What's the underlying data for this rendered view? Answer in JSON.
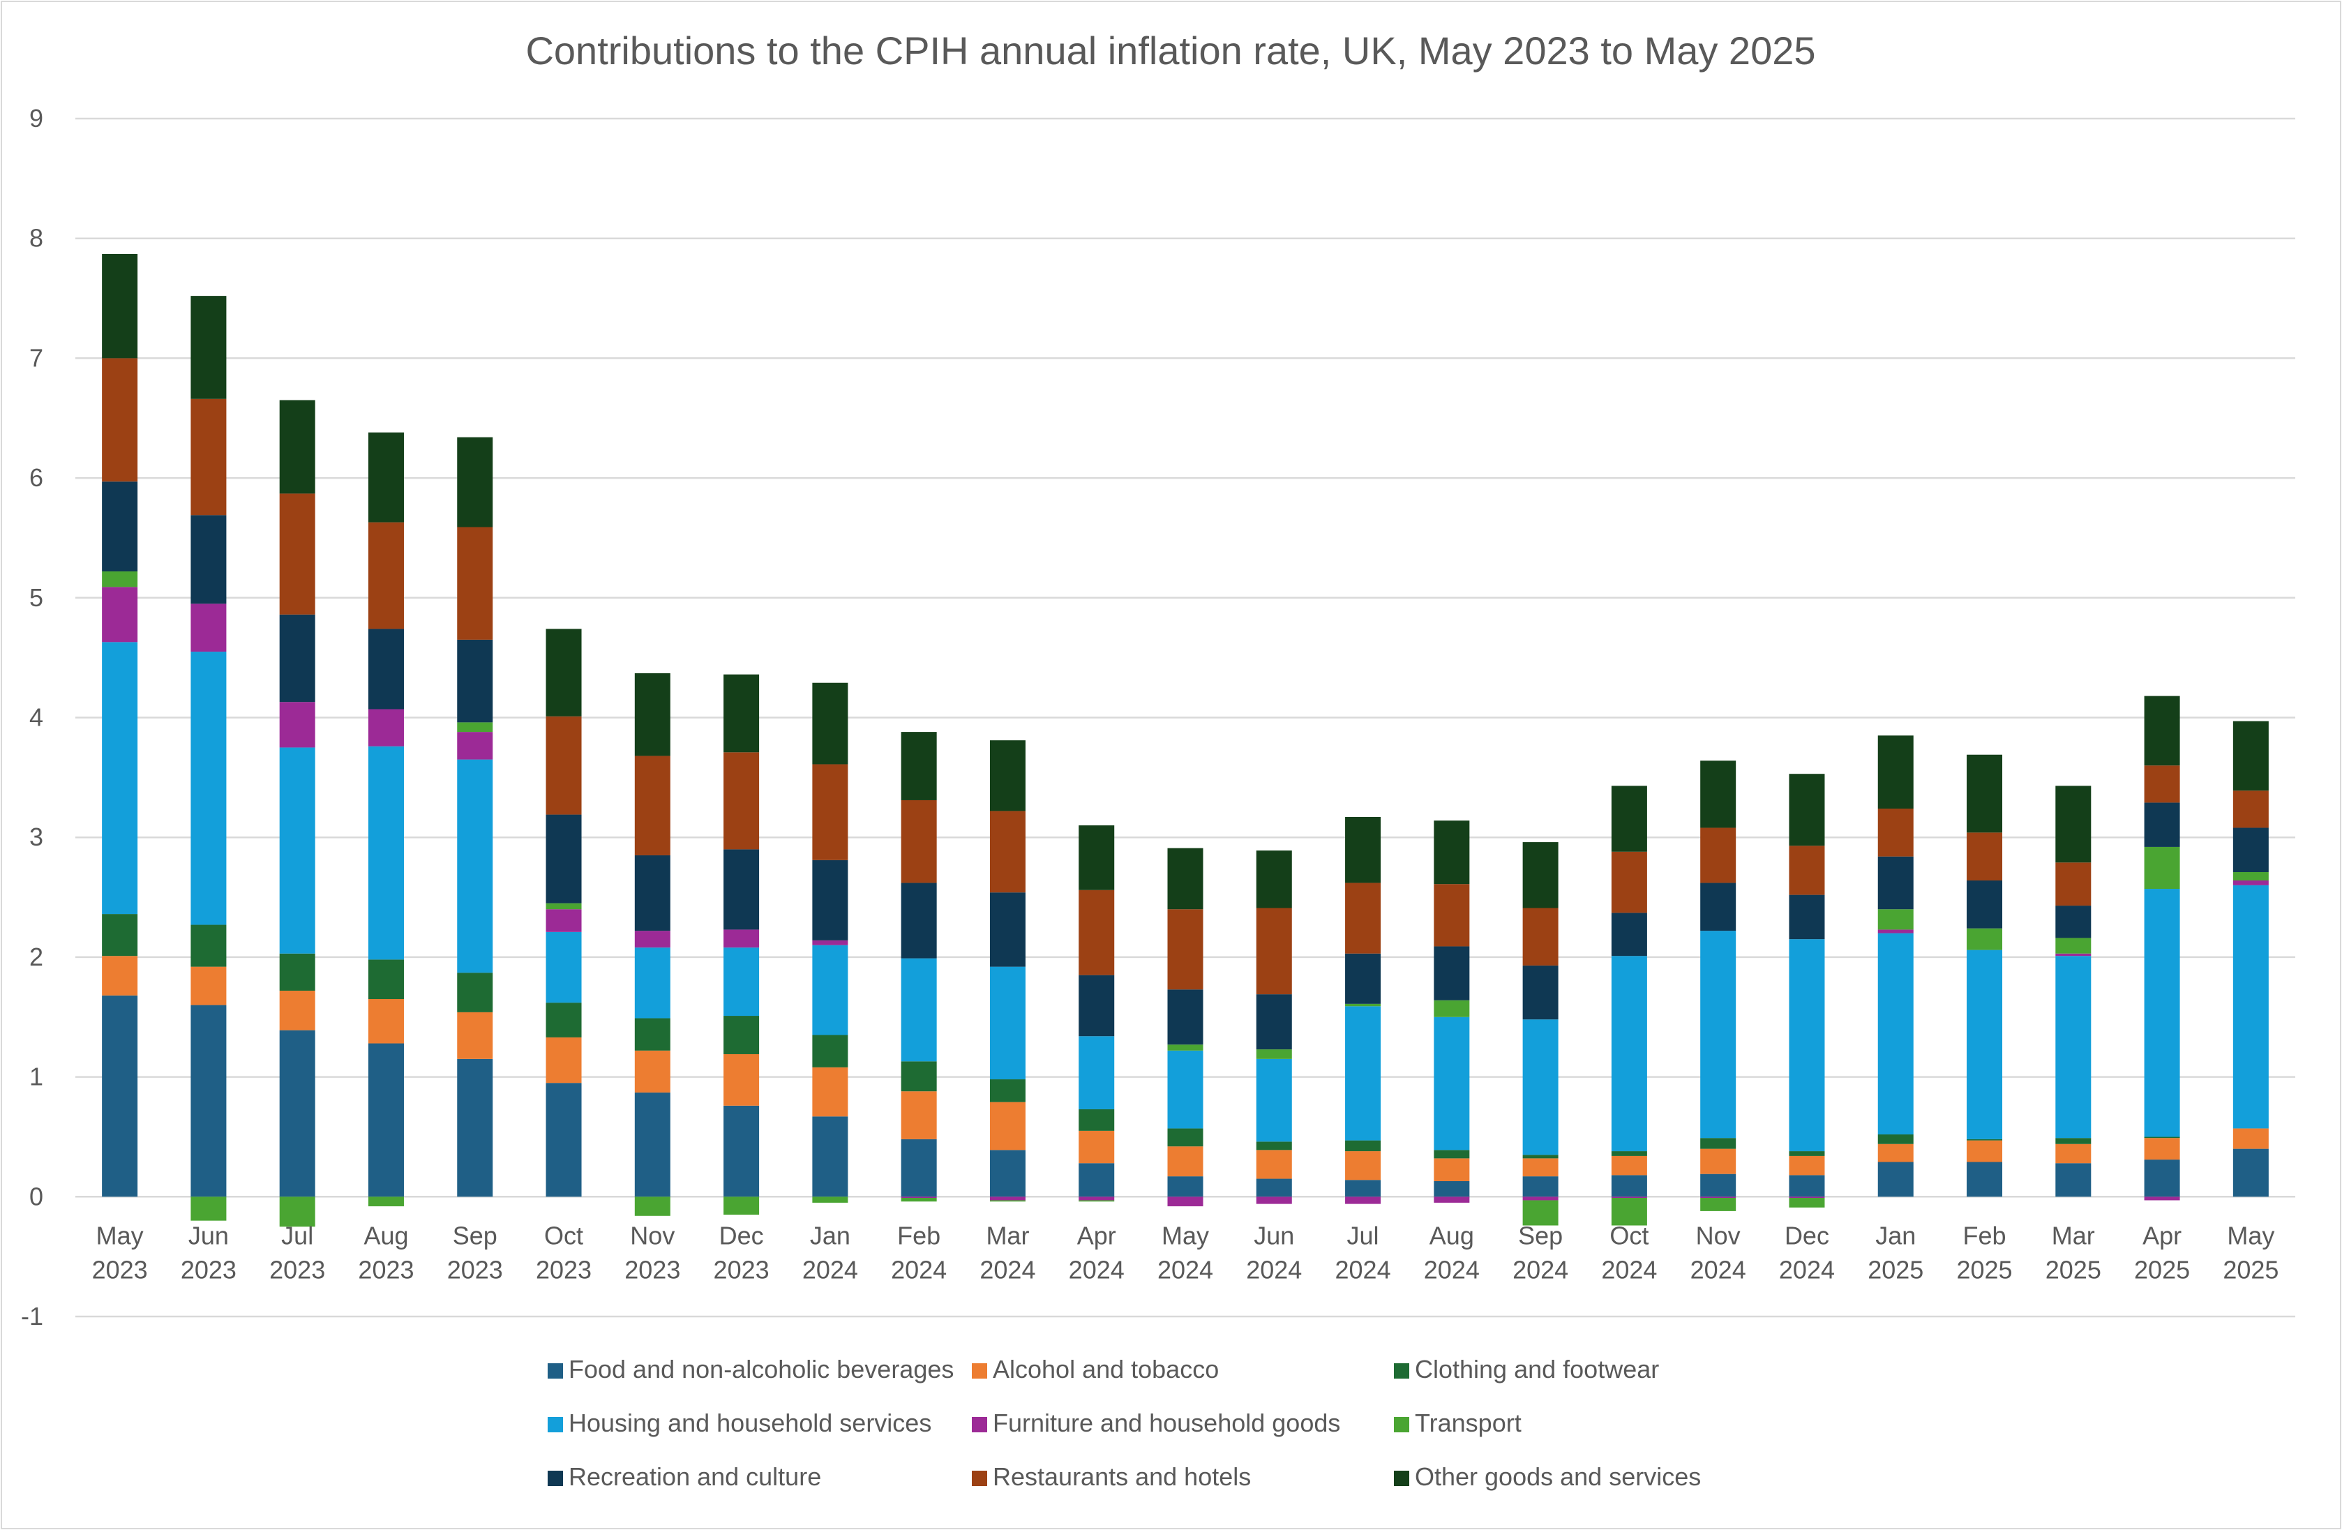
{
  "chart_data": {
    "type": "bar",
    "stacked": true,
    "title": "Contributions to the CPIH annual inflation rate, UK, May 2023 to May 2025",
    "xlabel": "",
    "ylabel": "",
    "ylim": [
      -1,
      9
    ],
    "yticks": [
      "-1",
      "0",
      "1",
      "2",
      "3",
      "4",
      "5",
      "6",
      "7",
      "8",
      "9"
    ],
    "grid": true,
    "legend_position": "bottom",
    "categories": [
      [
        "May",
        "2023"
      ],
      [
        "Jun",
        "2023"
      ],
      [
        "Jul",
        "2023"
      ],
      [
        "Aug",
        "2023"
      ],
      [
        "Sep",
        "2023"
      ],
      [
        "Oct",
        "2023"
      ],
      [
        "Nov",
        "2023"
      ],
      [
        "Dec",
        "2023"
      ],
      [
        "Jan",
        "2024"
      ],
      [
        "Feb",
        "2024"
      ],
      [
        "Mar",
        "2024"
      ],
      [
        "Apr",
        "2024"
      ],
      [
        "May",
        "2024"
      ],
      [
        "Jun",
        "2024"
      ],
      [
        "Jul",
        "2024"
      ],
      [
        "Aug",
        "2024"
      ],
      [
        "Sep",
        "2024"
      ],
      [
        "Oct",
        "2024"
      ],
      [
        "Nov",
        "2024"
      ],
      [
        "Dec",
        "2024"
      ],
      [
        "Jan",
        "2025"
      ],
      [
        "Feb",
        "2025"
      ],
      [
        "Mar",
        "2025"
      ],
      [
        "Apr",
        "2025"
      ],
      [
        "May",
        "2025"
      ]
    ],
    "series": [
      {
        "name": "Food and non-alcoholic beverages",
        "color": "#1f5f86",
        "values": [
          1.68,
          1.6,
          1.39,
          1.28,
          1.15,
          0.95,
          0.87,
          0.76,
          0.67,
          0.48,
          0.39,
          0.28,
          0.17,
          0.15,
          0.14,
          0.13,
          0.17,
          0.18,
          0.19,
          0.18,
          0.29,
          0.29,
          0.28,
          0.31,
          0.4
        ]
      },
      {
        "name": "Alcohol and tobacco",
        "color": "#ed7d31",
        "values": [
          0.33,
          0.32,
          0.33,
          0.37,
          0.39,
          0.38,
          0.35,
          0.43,
          0.41,
          0.4,
          0.4,
          0.27,
          0.25,
          0.24,
          0.24,
          0.19,
          0.15,
          0.16,
          0.21,
          0.16,
          0.15,
          0.18,
          0.16,
          0.18,
          0.17
        ]
      },
      {
        "name": "Clothing and footwear",
        "color": "#1e6b33",
        "values": [
          0.35,
          0.35,
          0.31,
          0.33,
          0.33,
          0.29,
          0.27,
          0.32,
          0.27,
          0.25,
          0.19,
          0.18,
          0.15,
          0.07,
          0.09,
          0.07,
          0.03,
          0.04,
          0.09,
          0.04,
          0.08,
          0.01,
          0.05,
          0.01,
          0.0
        ]
      },
      {
        "name": "Housing and household services",
        "color": "#139fda",
        "values": [
          2.27,
          2.28,
          1.72,
          1.78,
          1.78,
          0.59,
          0.59,
          0.57,
          0.75,
          0.86,
          0.94,
          0.61,
          0.65,
          0.69,
          1.12,
          1.11,
          1.13,
          1.63,
          1.73,
          1.77,
          1.68,
          1.58,
          1.52,
          2.07,
          2.03
        ]
      },
      {
        "name": "Furniture and household goods",
        "color": "#9c2a96",
        "values": [
          0.46,
          0.4,
          0.38,
          0.31,
          0.23,
          0.19,
          0.14,
          0.15,
          0.04,
          -0.01,
          -0.03,
          -0.03,
          -0.08,
          -0.06,
          -0.06,
          -0.05,
          -0.03,
          -0.01,
          -0.01,
          -0.01,
          0.03,
          0.0,
          0.02,
          -0.03,
          0.04
        ]
      },
      {
        "name": "Transport",
        "color": "#4aa532",
        "values": [
          0.13,
          -0.2,
          -0.25,
          -0.08,
          0.08,
          0.05,
          -0.16,
          -0.15,
          -0.05,
          -0.03,
          -0.01,
          -0.01,
          0.05,
          0.08,
          0.02,
          0.14,
          -0.21,
          -0.23,
          -0.11,
          -0.08,
          0.17,
          0.18,
          0.13,
          0.35,
          0.07
        ]
      },
      {
        "name": "Recreation and culture",
        "color": "#0f3853",
        "values": [
          0.75,
          0.74,
          0.73,
          0.67,
          0.69,
          0.74,
          0.63,
          0.67,
          0.67,
          0.63,
          0.62,
          0.51,
          0.46,
          0.46,
          0.42,
          0.45,
          0.45,
          0.36,
          0.4,
          0.37,
          0.44,
          0.4,
          0.27,
          0.37,
          0.37
        ]
      },
      {
        "name": "Restaurants and hotels",
        "color": "#9c4114",
        "values": [
          1.03,
          0.97,
          1.01,
          0.89,
          0.94,
          0.82,
          0.83,
          0.81,
          0.8,
          0.69,
          0.68,
          0.71,
          0.67,
          0.72,
          0.59,
          0.52,
          0.48,
          0.51,
          0.46,
          0.41,
          0.4,
          0.4,
          0.36,
          0.31,
          0.31
        ]
      },
      {
        "name": "Other goods and services",
        "color": "#143f19",
        "values": [
          0.87,
          0.86,
          0.78,
          0.75,
          0.75,
          0.73,
          0.69,
          0.65,
          0.68,
          0.57,
          0.59,
          0.54,
          0.51,
          0.48,
          0.55,
          0.53,
          0.55,
          0.55,
          0.56,
          0.6,
          0.61,
          0.65,
          0.64,
          0.58,
          0.58
        ]
      }
    ],
    "legend_rows": [
      [
        "Food and non-alcoholic beverages",
        "Alcohol and tobacco",
        "Clothing and footwear"
      ],
      [
        "Housing and household services",
        "Furniture and household goods",
        "Transport"
      ],
      [
        "Recreation and culture",
        "Restaurants and hotels",
        "Other goods and services"
      ]
    ]
  }
}
